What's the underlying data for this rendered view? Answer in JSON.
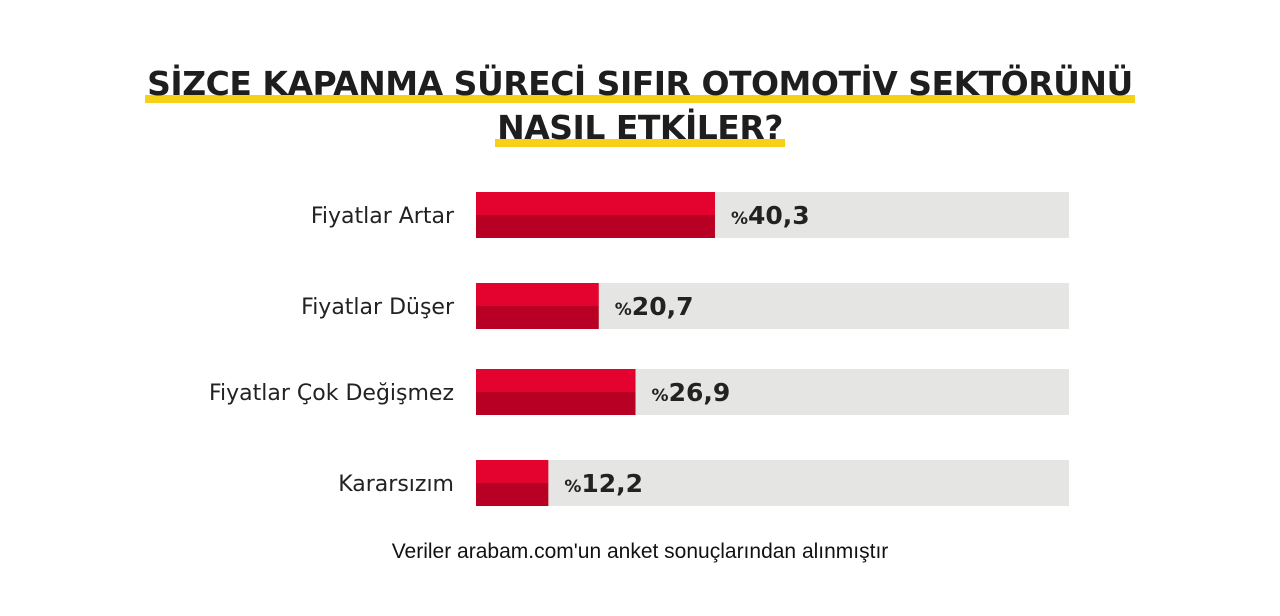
{
  "title_lines": [
    "SİZCE KAPANMA SÜRECİ SIFIR OTOMOTİV SEKTÖRÜNÜ",
    "NASIL ETKİLER?"
  ],
  "footer": "Veriler arabam.com'un anket sonuçlarından alınmıştır",
  "colors": {
    "bar_top": "#e4032e",
    "bar_bottom": "#b80024",
    "track": "#e5e5e3",
    "underline": "#f7d117",
    "text": "#222222"
  },
  "chart_data": {
    "type": "bar",
    "orientation": "horizontal",
    "categories": [
      "Fiyatlar Artar",
      "Fiyatlar Düşer",
      "Fiyatlar Çok Değişmez",
      "Kararsızım"
    ],
    "values": [
      40.3,
      20.7,
      26.9,
      12.2
    ],
    "value_labels": [
      "40,3",
      "20,7",
      "26,9",
      "12,2"
    ],
    "value_prefix": "%",
    "xlim": [
      0,
      100
    ],
    "grid": false,
    "legend": "none"
  }
}
